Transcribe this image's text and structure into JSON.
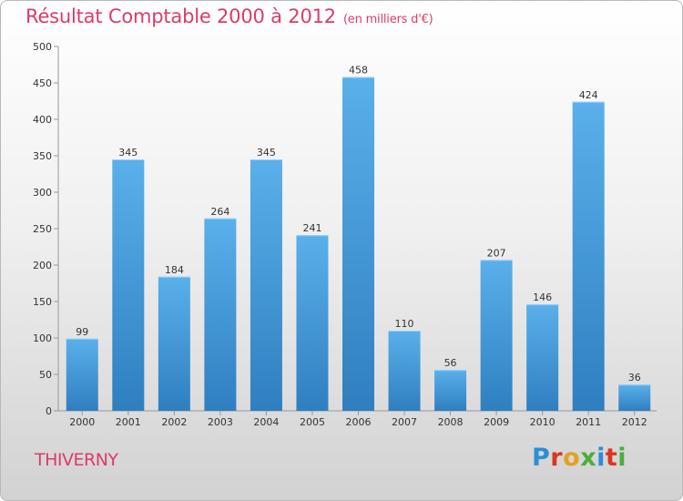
{
  "chart_data": {
    "type": "bar",
    "title": "Résultat Comptable 2000 à 2012",
    "unit": "(en milliers d'€)",
    "categories": [
      "2000",
      "2001",
      "2002",
      "2003",
      "2004",
      "2005",
      "2006",
      "2007",
      "2008",
      "2009",
      "2010",
      "2011",
      "2012"
    ],
    "values": [
      99,
      345,
      184,
      264,
      345,
      241,
      458,
      110,
      56,
      207,
      146,
      424,
      36
    ],
    "ylim": [
      0,
      500
    ],
    "yticks": [
      0,
      50,
      100,
      150,
      200,
      250,
      300,
      350,
      400,
      450,
      500
    ],
    "xlabel": "",
    "ylabel": "",
    "grid": false,
    "bar_color": "#3b93d6"
  },
  "location": "THIVERNY",
  "brand": {
    "letters": [
      "P",
      "r",
      "o",
      "x",
      "i",
      "t",
      "i"
    ]
  }
}
